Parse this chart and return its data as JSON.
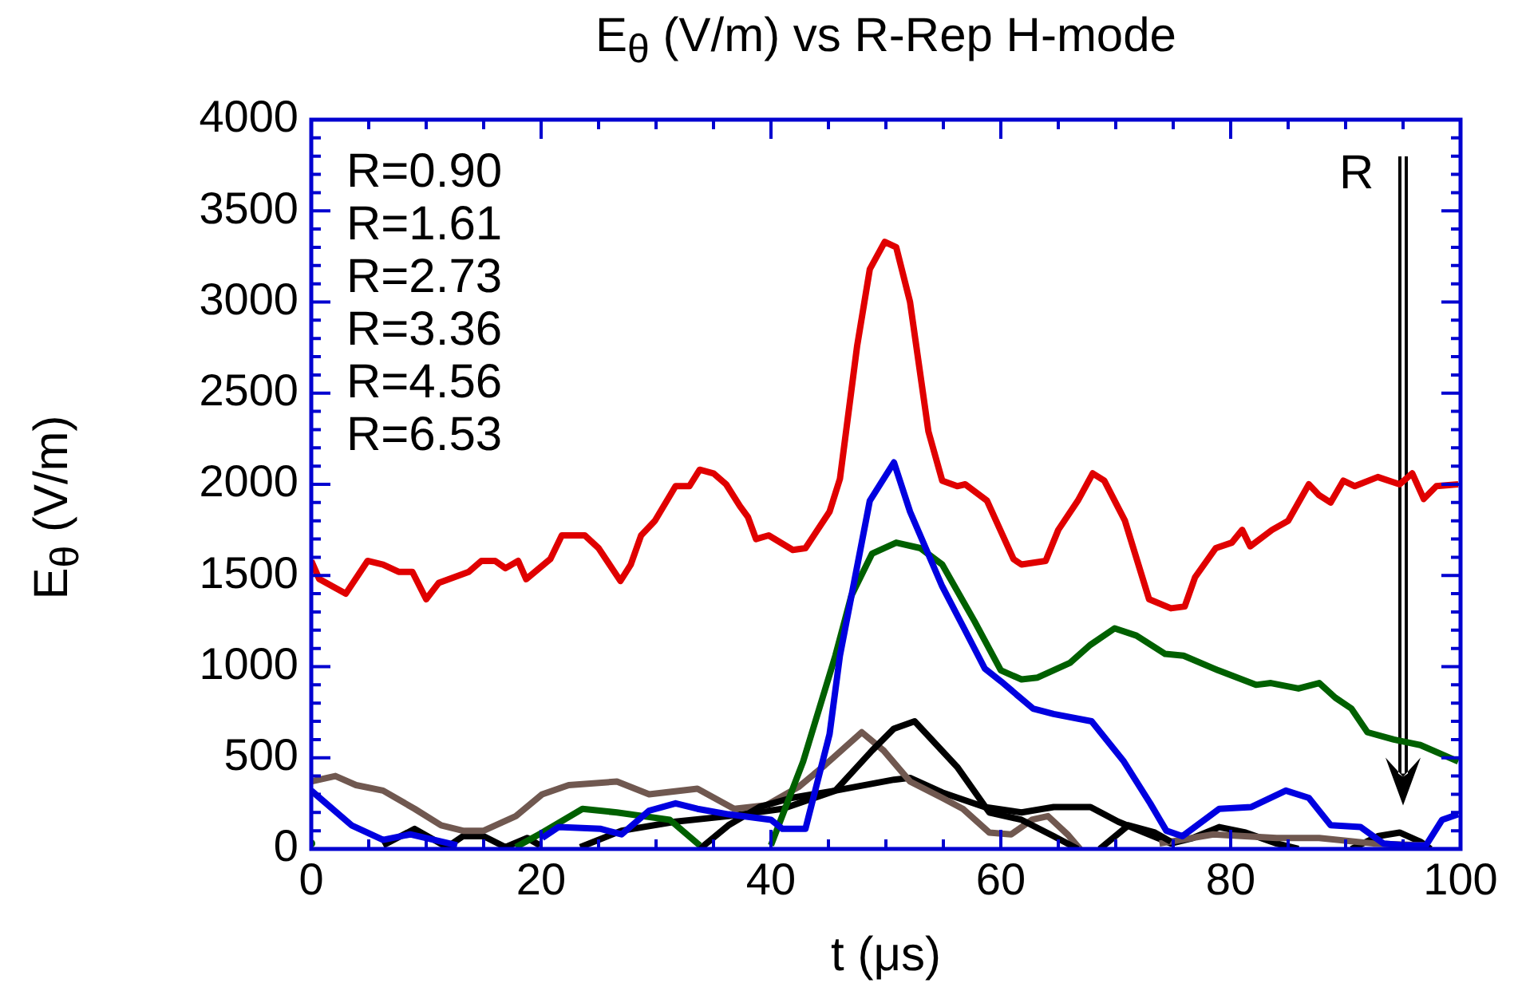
{
  "chart_data": {
    "type": "line",
    "title": "E$_{θ}$ (V/m) vs R-Rep H-mode",
    "xlabel": "t (μs)",
    "ylabel": "E$_{θ}$ (V/m)",
    "xlim": [
      0,
      100
    ],
    "xticks": [
      0,
      20,
      40,
      60,
      80,
      100
    ],
    "ylim": [
      0,
      4000
    ],
    "yticks": [
      0,
      500,
      1000,
      1500,
      2000,
      2500,
      3000,
      3500,
      4000
    ],
    "grid": false,
    "legend": false,
    "marker": "none",
    "line_style": "solid",
    "annotations": [
      "R=0.90",
      "R=1.61",
      "R=2.73",
      "R=3.36",
      "R=4.56",
      "R=6.53",
      "R"
    ],
    "series": [
      {
        "color": "#e00000",
        "x": [
          0,
          0.7,
          3,
          4.9,
          6.25,
          7.6,
          8.8,
          10,
          11.1,
          13.7,
          14.8,
          16,
          16.9,
          18,
          18.7,
          20.8,
          21.8,
          23.8,
          25,
          26.9,
          27.8,
          28.7,
          29.9,
          31.7,
          32.9,
          33.8,
          35,
          36.1,
          37.3,
          38,
          38.7,
          39.8,
          41.9,
          43,
          45.1,
          46,
          47.5,
          48.6,
          49.9,
          50.9,
          52.1,
          53.7,
          54.9,
          56.2,
          56.9,
          58.8,
          61.1,
          61.8,
          63.9,
          65,
          66.7,
          68,
          69,
          70.8,
          72.9,
          74.8,
          76,
          76.9,
          78.7,
          80.1,
          81,
          81.7,
          83.6,
          85,
          86.8,
          87.7,
          88.7,
          89.8,
          90.8,
          92.8,
          94.7,
          95.8,
          96.8,
          97.9,
          99.8
        ],
        "values": [
          1580,
          1480,
          1400,
          1580,
          1560,
          1520,
          1520,
          1370,
          1460,
          1520,
          1580,
          1580,
          1540,
          1580,
          1480,
          1590,
          1720,
          1720,
          1650,
          1470,
          1560,
          1720,
          1800,
          1990,
          1990,
          2080,
          2060,
          2000,
          1880,
          1820,
          1700,
          1720,
          1640,
          1650,
          1850,
          2030,
          2760,
          3180,
          3330,
          3300,
          3000,
          2290,
          2020,
          1990,
          2000,
          1910,
          1590,
          1560,
          1580,
          1750,
          1910,
          2060,
          2020,
          1800,
          1370,
          1320,
          1330,
          1490,
          1650,
          1680,
          1750,
          1660,
          1750,
          1800,
          2000,
          1940,
          1900,
          2020,
          1990,
          2040,
          2000,
          2060,
          1920,
          1990,
          2000
        ]
      },
      {
        "color": "#0000e0",
        "x": [
          0,
          3.5,
          6.25,
          8.6,
          12.7,
          16,
          20.1,
          21.5,
          25.2,
          27,
          29.4,
          31.7,
          33.6,
          36.3,
          40,
          41,
          43,
          45.1,
          46,
          48.6,
          50.7,
          52.1,
          54.9,
          56.8,
          58.6,
          60,
          62.8,
          64.6,
          67.9,
          70.7,
          73,
          74.4,
          75.8,
          79,
          81.8,
          84.8,
          86.8,
          88.7,
          91.3,
          93.3,
          95.2,
          97,
          98.4,
          99.8
        ],
        "values": [
          320,
          130,
          50,
          80,
          20,
          null,
          60,
          120,
          110,
          80,
          210,
          250,
          220,
          190,
          160,
          110,
          110,
          630,
          1060,
          1910,
          2120,
          1850,
          1440,
          1210,
          990,
          920,
          770,
          740,
          700,
          480,
          250,
          100,
          70,
          220,
          230,
          320,
          280,
          130,
          120,
          30,
          20,
          20,
          160,
          190
        ]
      },
      {
        "color": "#006000",
        "x": [
          0,
          10,
          17.8,
          20.1,
          23.6,
          26.6,
          31.2,
          33.8,
          37,
          40,
          42.8,
          45.6,
          47,
          48.8,
          50.9,
          53,
          54.9,
          57.7,
          60,
          61.8,
          63.2,
          66,
          67.8,
          69.9,
          71.8,
          74.3,
          75.9,
          78.9,
          82.2,
          83.5,
          85.9,
          87.7,
          89.1,
          90.5,
          91.9,
          94.2,
          96.5,
          99.8
        ],
        "values": [
          30,
          null,
          10,
          90,
          220,
          200,
          160,
          20,
          null,
          20,
          480,
          1060,
          1390,
          1620,
          1680,
          1650,
          1560,
          1250,
          980,
          930,
          940,
          1020,
          1120,
          1210,
          1170,
          1070,
          1060,
          980,
          900,
          910,
          880,
          910,
          830,
          770,
          640,
          600,
          570,
          480
        ]
      },
      {
        "color": "#000000",
        "x": [
          33.8,
          36.3,
          39,
          41.8,
          45.6,
          48.8,
          50.7,
          52.5,
          56.2,
          59,
          61.8,
          64.6,
          66.7,
          67.6,
          68.6,
          71.1,
          73.4,
          74.8
        ],
        "values": [
          0,
          130,
          230,
          280,
          320,
          540,
          660,
          700,
          450,
          200,
          160,
          70,
          0,
          null,
          0,
          130,
          90,
          40
        ]
      },
      {
        "color": "#705850",
        "x": [
          0,
          2.1,
          3.9,
          6.25,
          9,
          11.3,
          13.2,
          15,
          17.8,
          20.1,
          22.4,
          26.6,
          29.4,
          33.6,
          36.8,
          39.6,
          42.4,
          44.7,
          47.9,
          49.8,
          52.1,
          54.9,
          56.7,
          59,
          60.9,
          62.7,
          64.1,
          65.8,
          66.9,
          70,
          73.8,
          78.5,
          84,
          87.7,
          92.4,
          97
        ],
        "values": [
          370,
          400,
          350,
          320,
          220,
          130,
          100,
          100,
          180,
          300,
          350,
          370,
          300,
          330,
          220,
          240,
          340,
          460,
          640,
          540,
          370,
          280,
          220,
          90,
          80,
          160,
          180,
          80,
          0,
          null,
          30,
          80,
          60,
          60,
          30,
          20
        ]
      },
      {
        "color": "#000000",
        "x": [
          6.25,
          9,
          11.8,
          13.2,
          15,
          16.9,
          18.8,
          19.9,
          21.5,
          23.4,
          27,
          31.7,
          36.3,
          41,
          45.6,
          50.7,
          52.1,
          54.9,
          58.6,
          61.8,
          64.6,
          67.8,
          70.2,
          72.5,
          74.8,
          76.7,
          79,
          81.3,
          84,
          85.9,
          88,
          90.5,
          92.8,
          94.7,
          96.5,
          97.4
        ],
        "values": [
          20,
          110,
          10,
          70,
          70,
          10,
          60,
          20,
          null,
          10,
          100,
          150,
          180,
          220,
          320,
          380,
          390,
          310,
          230,
          200,
          230,
          230,
          150,
          90,
          30,
          60,
          120,
          90,
          30,
          0,
          null,
          0,
          70,
          90,
          40,
          0
        ]
      }
    ]
  }
}
